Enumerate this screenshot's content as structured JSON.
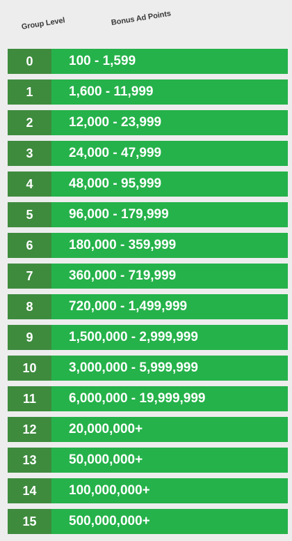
{
  "header": {
    "group_level": "Group Level",
    "bonus_ad_points": "Bonus Ad Points"
  },
  "rows": [
    {
      "level": "0",
      "points": "100 - 1,599"
    },
    {
      "level": "1",
      "points": "1,600 - 11,999"
    },
    {
      "level": "2",
      "points": "12,000 - 23,999"
    },
    {
      "level": "3",
      "points": "24,000 - 47,999"
    },
    {
      "level": "4",
      "points": "48,000 - 95,999"
    },
    {
      "level": "5",
      "points": "96,000 - 179,999"
    },
    {
      "level": "6",
      "points": "180,000 - 359,999"
    },
    {
      "level": "7",
      "points": "360,000 - 719,999"
    },
    {
      "level": "8",
      "points": "720,000 - 1,499,999"
    },
    {
      "level": "9",
      "points": "1,500,000 - 2,999,999"
    },
    {
      "level": "10",
      "points": "3,000,000 - 5,999,999"
    },
    {
      "level": "11",
      "points": "6,000,000 - 19,999,999"
    },
    {
      "level": "12",
      "points": "20,000,000+"
    },
    {
      "level": "13",
      "points": "50,000,000+"
    },
    {
      "level": "14",
      "points": "100,000,000+"
    },
    {
      "level": "15",
      "points": "500,000,000+"
    }
  ],
  "colors": {
    "background": "#eeedee",
    "level_cell": "#3e8b3e",
    "points_cell": "#25b24a",
    "text": "#ffffff",
    "header_text": "#3a3a3a"
  }
}
